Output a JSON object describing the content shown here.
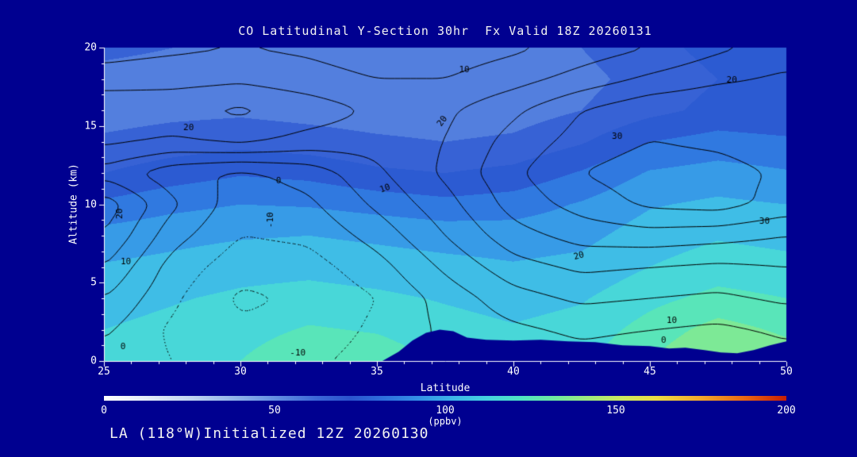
{
  "chart": {
    "title": "CO Latitudinal Y-Section 30hr  Fx Valid 18Z 20260131",
    "xlabel": "Latitude",
    "ylabel": "Altitude (km)",
    "footer": "LA (118°W)Initialized 12Z 20260130",
    "background": "#000090",
    "axis_color": "#ffffff",
    "text_color": "#f2f2f2",
    "colorbar": {
      "label": "(ppbv)",
      "min": 0,
      "max": 200,
      "ticks": [
        0,
        50,
        100,
        150,
        200
      ]
    }
  },
  "chart_data": {
    "type": "heatmap",
    "title": "CO Latitudinal Y-Section 30hr  Fx Valid 18Z 20260131",
    "xlabel": "Latitude",
    "ylabel": "Altitude (km)",
    "x_range": [
      25,
      50
    ],
    "y_range": [
      0,
      20
    ],
    "x_ticks": [
      25,
      30,
      35,
      40,
      45,
      50
    ],
    "y_ticks": [
      0,
      5,
      10,
      15,
      20
    ],
    "x_latitude": [
      25,
      27.5,
      30,
      32.5,
      35,
      37.5,
      40,
      42.5,
      45,
      47.5,
      50
    ],
    "y_altitude_km": [
      0,
      2,
      4,
      6,
      8,
      10,
      12,
      14,
      16,
      18,
      20
    ],
    "co_ppbv_grid_by_altitude": [
      [
        113,
        116,
        120,
        128,
        126,
        118,
        114,
        118,
        130,
        142,
        136
      ],
      [
        110,
        113,
        116,
        121,
        119,
        114,
        111,
        114,
        124,
        134,
        128
      ],
      [
        106,
        109,
        112,
        114,
        112,
        109,
        106,
        109,
        117,
        123,
        120
      ],
      [
        101,
        103,
        106,
        107,
        105,
        103,
        101,
        103,
        110,
        115,
        113
      ],
      [
        94,
        97,
        99,
        100,
        98,
        96,
        95,
        97,
        105,
        109,
        107
      ],
      [
        82,
        87,
        90,
        89,
        86,
        83,
        85,
        91,
        99,
        102,
        100
      ],
      [
        70,
        75,
        79,
        77,
        72,
        70,
        73,
        81,
        91,
        94,
        91
      ],
      [
        62,
        65,
        67,
        65,
        62,
        60,
        62,
        69,
        80,
        84,
        82
      ],
      [
        55,
        57,
        58,
        56,
        54,
        53,
        55,
        60,
        67,
        73,
        71
      ],
      [
        57,
        56,
        55,
        54,
        53,
        52,
        53,
        57,
        64,
        70,
        72
      ],
      [
        62,
        60,
        59,
        58,
        56,
        55,
        56,
        60,
        67,
        73,
        75
      ]
    ],
    "fill_band_step_ppbv": 10,
    "overlay_contours": {
      "field": "line contour overlay",
      "levels_solid": [
        0,
        5,
        10,
        15,
        20,
        25,
        30
      ],
      "levels_dotted": [
        -10,
        -5
      ],
      "u_grid_by_altitude": [
        [
          -2,
          -5,
          -7,
          -6,
          -3,
          1,
          2,
          3,
          2,
          1,
          3
        ],
        [
          1,
          -6,
          -9,
          -8,
          -4,
          1,
          4,
          6,
          5,
          4,
          6
        ],
        [
          5,
          -4,
          -11,
          -9,
          -5,
          2,
          8,
          11,
          10,
          9,
          11
        ],
        [
          10,
          -2,
          -8,
          -7,
          -2,
          6,
          13,
          16,
          15,
          14,
          15
        ],
        [
          15,
          2,
          -5,
          -4,
          2,
          10,
          18,
          22,
          23,
          22,
          20
        ],
        [
          18,
          6,
          -3,
          -1,
          6,
          13,
          22,
          27,
          31,
          32,
          28
        ],
        [
          8,
          2,
          -1,
          2,
          9,
          16,
          24,
          30,
          33,
          32,
          29
        ],
        [
          16,
          14,
          16,
          13,
          12,
          15,
          22,
          27,
          30,
          29,
          27
        ],
        [
          20,
          19,
          21,
          18,
          14,
          14,
          19,
          25,
          29,
          30,
          28
        ],
        [
          12,
          13,
          14,
          12,
          10,
          10,
          13,
          17,
          21,
          24,
          26
        ],
        [
          8,
          9,
          10,
          9,
          7,
          7,
          9,
          12,
          15,
          19,
          22
        ]
      ]
    },
    "contour_labels": [
      {
        "t": "10",
        "lat": 38.2,
        "alt": 18.6,
        "rot": 0
      },
      {
        "t": "20",
        "lat": 48.0,
        "alt": 17.9,
        "rot": 0
      },
      {
        "t": "20",
        "lat": 37.4,
        "alt": 15.3,
        "rot": -55
      },
      {
        "t": "30",
        "lat": 43.8,
        "alt": 14.3,
        "rot": 0
      },
      {
        "t": "20",
        "lat": 28.1,
        "alt": 14.9,
        "rot": 0
      },
      {
        "t": "0",
        "lat": 31.4,
        "alt": 11.5,
        "rot": 0
      },
      {
        "t": "10",
        "lat": 35.3,
        "alt": 11.0,
        "rot": -20
      },
      {
        "t": "20",
        "lat": 25.6,
        "alt": 9.4,
        "rot": -90
      },
      {
        "t": "-10",
        "lat": 31.1,
        "alt": 9.0,
        "rot": -90
      },
      {
        "t": "30",
        "lat": 49.2,
        "alt": 8.9,
        "rot": 0
      },
      {
        "t": "10",
        "lat": 25.8,
        "alt": 6.3,
        "rot": 0
      },
      {
        "t": "20",
        "lat": 42.4,
        "alt": 6.7,
        "rot": -15
      },
      {
        "t": "10",
        "lat": 45.8,
        "alt": 2.6,
        "rot": 0
      },
      {
        "t": "0",
        "lat": 45.5,
        "alt": 1.3,
        "rot": 0
      },
      {
        "t": "0",
        "lat": 25.7,
        "alt": 0.9,
        "rot": 0
      },
      {
        "t": "-10",
        "lat": 32.1,
        "alt": 0.5,
        "rot": 0
      }
    ],
    "terrain_profile_km": [
      [
        35.2,
        0
      ],
      [
        35.8,
        0.6
      ],
      [
        36.3,
        1.3
      ],
      [
        36.8,
        1.8
      ],
      [
        37.3,
        2.0
      ],
      [
        37.8,
        1.9
      ],
      [
        38.3,
        1.5
      ],
      [
        39,
        1.35
      ],
      [
        40,
        1.3
      ],
      [
        41,
        1.35
      ],
      [
        42,
        1.25
      ],
      [
        43,
        1.2
      ],
      [
        44,
        1.0
      ],
      [
        45,
        0.95
      ],
      [
        45.7,
        0.8
      ],
      [
        46.3,
        0.85
      ],
      [
        47,
        0.7
      ],
      [
        47.6,
        0.55
      ],
      [
        48.2,
        0.5
      ],
      [
        48.8,
        0.7
      ],
      [
        49.4,
        1.0
      ],
      [
        50,
        1.25
      ]
    ],
    "colormap": [
      {
        "v": 0,
        "c": "#ffffff"
      },
      {
        "v": 12,
        "c": "#e4ecf9"
      },
      {
        "v": 25,
        "c": "#c2d6f2"
      },
      {
        "v": 38,
        "c": "#92b4ea"
      },
      {
        "v": 50,
        "c": "#6490e2"
      },
      {
        "v": 62,
        "c": "#3c68d8"
      },
      {
        "v": 72,
        "c": "#2b53ce"
      },
      {
        "v": 82,
        "c": "#2e6fdd"
      },
      {
        "v": 92,
        "c": "#3490e6"
      },
      {
        "v": 102,
        "c": "#3db4e8"
      },
      {
        "v": 112,
        "c": "#45d2e0"
      },
      {
        "v": 122,
        "c": "#4fe3c4"
      },
      {
        "v": 132,
        "c": "#6fe9a0"
      },
      {
        "v": 142,
        "c": "#9fe97e"
      },
      {
        "v": 152,
        "c": "#cdea5e"
      },
      {
        "v": 162,
        "c": "#ecdc44"
      },
      {
        "v": 175,
        "c": "#f2a82c"
      },
      {
        "v": 188,
        "c": "#e96612"
      },
      {
        "v": 200,
        "c": "#c81e05"
      }
    ]
  }
}
